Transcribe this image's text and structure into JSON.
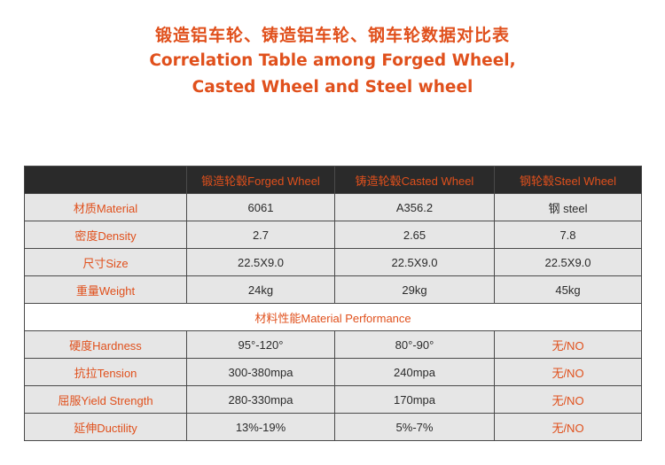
{
  "title": {
    "cn": "锻造铝车轮、铸造铝车轮、钢车轮数据对比表",
    "en_line1": "Correlation Table among Forged Wheel,",
    "en_line2": "Casted Wheel and Steel wheel"
  },
  "table": {
    "headers": [
      "",
      "锻造轮毂Forged Wheel",
      "铸造轮毂Casted Wheel",
      "钢轮毂Steel Wheel"
    ],
    "rows": [
      {
        "label": "材质Material",
        "values": [
          "6061",
          "A356.2",
          "钢 steel"
        ]
      },
      {
        "label": "密度Density",
        "values": [
          "2.7",
          "2.65",
          "7.8"
        ]
      },
      {
        "label": "尺寸Size",
        "values": [
          "22.5X9.0",
          "22.5X9.0",
          "22.5X9.0"
        ]
      },
      {
        "label": "重量Weight",
        "values": [
          "24kg",
          "29kg",
          "45kg"
        ]
      }
    ],
    "section": "材料性能Material Performance",
    "perf_rows": [
      {
        "label": "硬度Hardness",
        "values": [
          "95°-120°",
          "80°-90°",
          "无/NO"
        ]
      },
      {
        "label": "抗拉Tension",
        "values": [
          "300-380mpa",
          "240mpa",
          "无/NO"
        ]
      },
      {
        "label": "屈服Yield Strength",
        "values": [
          "280-330mpa",
          "170mpa",
          "无/NO"
        ]
      },
      {
        "label": "延伸Ductility",
        "values": [
          "13%-19%",
          "5%-7%",
          "无/NO"
        ]
      }
    ]
  },
  "colors": {
    "accent": "#e0501c",
    "header_bg": "#2a2a2a",
    "cell_bg": "#e6e6e6"
  }
}
